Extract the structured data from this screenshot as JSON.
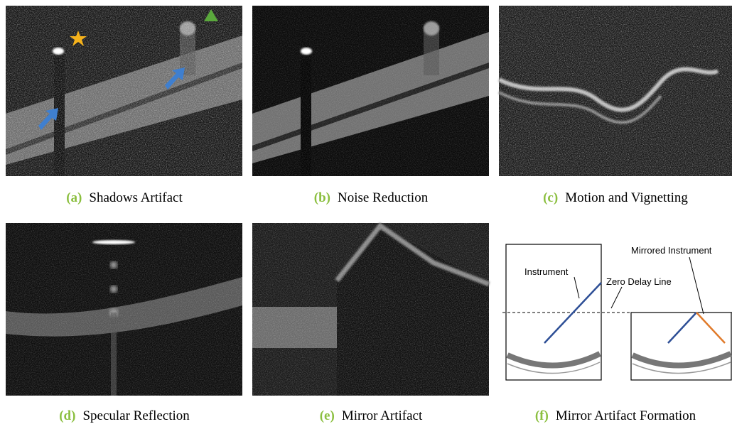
{
  "panels": [
    {
      "label": "(a)",
      "caption": "Shadows Artifact"
    },
    {
      "label": "(b)",
      "caption": "Noise Reduction"
    },
    {
      "label": "(c)",
      "caption": "Motion and Vignetting"
    },
    {
      "label": "(d)",
      "caption": "Specular Reflection"
    },
    {
      "label": "(e)",
      "caption": "Mirror Artifact"
    },
    {
      "label": "(f)",
      "caption": "Mirror Artifact Formation"
    }
  ],
  "diagram": {
    "instrument": "Instrument",
    "zero_delay_line": "Zero Delay Line",
    "mirrored_instrument": "Mirrored Instrument"
  }
}
